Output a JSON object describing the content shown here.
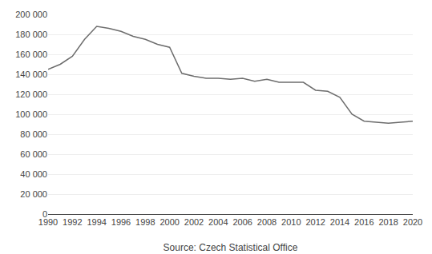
{
  "chart_data": {
    "type": "line",
    "xlabel": "Source: Czech Statistical Office",
    "x": [
      1990,
      1991,
      1992,
      1993,
      1994,
      1995,
      1996,
      1997,
      1998,
      1999,
      2000,
      2001,
      2002,
      2003,
      2004,
      2005,
      2006,
      2007,
      2008,
      2009,
      2010,
      2011,
      2012,
      2013,
      2014,
      2015,
      2016,
      2017,
      2018,
      2019,
      2020
    ],
    "values": [
      145000,
      150000,
      158000,
      175000,
      188000,
      186000,
      183000,
      178000,
      175000,
      170000,
      167000,
      141000,
      138000,
      136000,
      136000,
      135000,
      136000,
      133000,
      135000,
      132000,
      132000,
      132000,
      124000,
      123000,
      117000,
      100000,
      93000,
      92000,
      91000,
      92000,
      93000
    ],
    "color": "#6d6d6d",
    "xlim": [
      1990,
      2020
    ],
    "xticks": [
      1990,
      1992,
      1994,
      1996,
      1998,
      2000,
      2002,
      2004,
      2006,
      2008,
      2010,
      2012,
      2014,
      2016,
      2018,
      2020
    ],
    "ylim": [
      0,
      200000
    ],
    "yticks": [
      0,
      {
        "value": 20000,
        "label": "20 000"
      },
      {
        "value": 40000,
        "label": "40 000"
      },
      {
        "value": 60000,
        "label": "60 000"
      },
      {
        "value": 80000,
        "label": "80 000"
      },
      {
        "value": 100000,
        "label": "100 000"
      },
      {
        "value": 120000,
        "label": "120 000"
      },
      {
        "value": 140000,
        "label": "140 000"
      },
      {
        "value": 160000,
        "label": "160 000"
      },
      {
        "value": 180000,
        "label": "180 000"
      },
      {
        "value": 200000,
        "label": "200 000"
      }
    ],
    "grid": true
  }
}
